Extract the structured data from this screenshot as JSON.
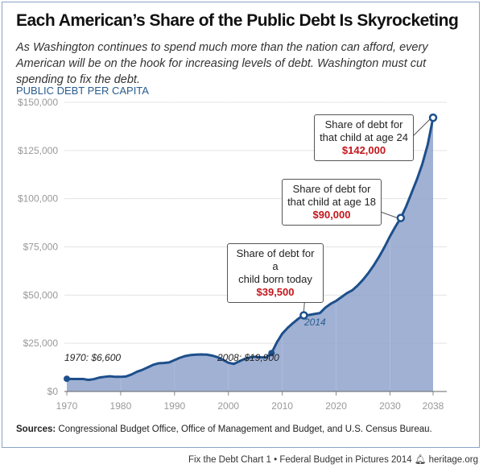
{
  "title": "Each American’s Share of the Public Debt Is Skyrocketing",
  "subtitle": "As Washington continues to spend much more than the nation can afford, every American will be on the hook for increasing levels of debt. Washington must cut spending to fix the debt.",
  "sources_label": "Sources:",
  "sources_text": " Congressional Budget Office, Office of Management and Budget, and U.S. Census Bureau.",
  "footer": {
    "chart": "Fix the Debt Chart 1",
    "sep": "•",
    "pub": "Federal Budget in Pictures 2014",
    "site": "heritage.org",
    "logo_icon": "liberty-bell-icon"
  },
  "colors": {
    "line": "#1d4f8b",
    "fill": "#8fa3cc",
    "highlight": "#c4161c",
    "ylabel": "#2a5c8f"
  },
  "chart_data": {
    "type": "area",
    "ylabel": "PUBLIC DEBT PER CAPITA",
    "ylim": [
      0,
      150000
    ],
    "xlim": [
      1970,
      2038
    ],
    "yticks": [
      0,
      25000,
      50000,
      75000,
      100000,
      125000,
      150000
    ],
    "ytick_labels": [
      "$0",
      "$25,000",
      "$50,000",
      "$75,000",
      "$100,000",
      "$125,000",
      "$150,000"
    ],
    "xticks": [
      1970,
      1980,
      1990,
      2000,
      2010,
      2020,
      2030,
      2038
    ],
    "xtick_labels": [
      "1970",
      "1980",
      "1990",
      "2000",
      "2010",
      "2020",
      "2030",
      "2038"
    ],
    "grid": true,
    "x": [
      1970,
      1971,
      1972,
      1973,
      1974,
      1975,
      1976,
      1977,
      1978,
      1979,
      1980,
      1981,
      1982,
      1983,
      1984,
      1985,
      1986,
      1987,
      1988,
      1989,
      1990,
      1991,
      1992,
      1993,
      1994,
      1995,
      1996,
      1997,
      1998,
      1999,
      2000,
      2001,
      2002,
      2003,
      2004,
      2005,
      2006,
      2007,
      2008,
      2009,
      2010,
      2011,
      2012,
      2013,
      2014,
      2015,
      2016,
      2017,
      2018,
      2019,
      2020,
      2021,
      2022,
      2023,
      2024,
      2025,
      2026,
      2027,
      2028,
      2029,
      2030,
      2031,
      2032,
      2033,
      2034,
      2035,
      2036,
      2037,
      2038
    ],
    "y": [
      6600,
      6500,
      6500,
      6500,
      6000,
      6400,
      7200,
      7600,
      7900,
      7600,
      7600,
      7800,
      8800,
      10200,
      11200,
      12500,
      13800,
      14600,
      14800,
      15100,
      16300,
      17500,
      18400,
      18900,
      19100,
      19200,
      19100,
      18600,
      17800,
      16400,
      14900,
      14300,
      15600,
      16900,
      17700,
      18000,
      17700,
      17700,
      19900,
      25500,
      30000,
      33000,
      35500,
      37800,
      39500,
      39700,
      40200,
      40700,
      43500,
      45500,
      47000,
      49000,
      51000,
      52500,
      55000,
      58000,
      61500,
      65500,
      70000,
      75000,
      80500,
      85500,
      90000,
      96000,
      103000,
      110000,
      118000,
      128000,
      142000
    ],
    "annotations": {
      "start": {
        "year": 1970,
        "value": 6600,
        "text": "1970: $6,600"
      },
      "y2008": {
        "year": 2008,
        "value": 19900,
        "text": "2008: $19,900"
      },
      "y2014": {
        "year": 2014,
        "value": 39500,
        "label": "2014",
        "line1": "Share of debt for a",
        "line2": "child born today",
        "amount": "$39,500"
      },
      "age18": {
        "year": 2032,
        "value": 90000,
        "line1": "Share of debt for",
        "line2": "that child at age 18",
        "amount": "$90,000"
      },
      "age24": {
        "year": 2038,
        "value": 142000,
        "line1": "Share of debt for",
        "line2": "that child at age 24",
        "amount": "$142,000"
      }
    }
  }
}
